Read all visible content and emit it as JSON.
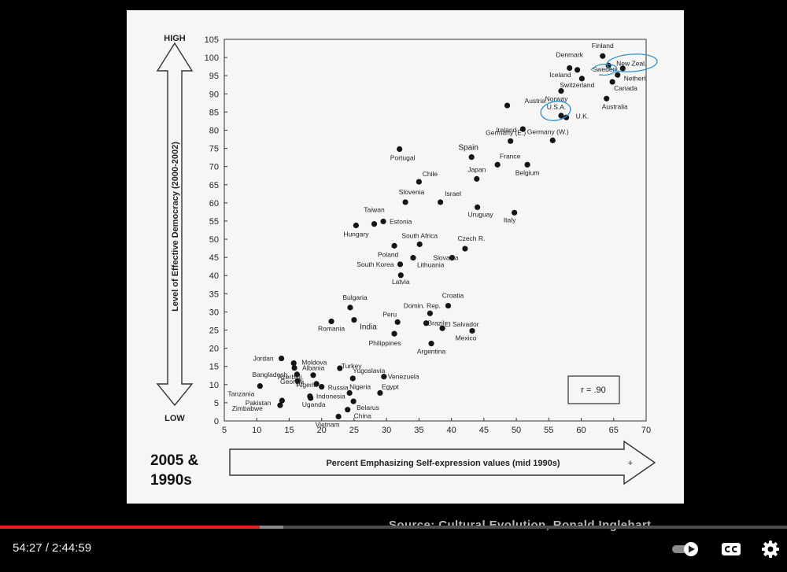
{
  "slide": {
    "high_label": "HIGH",
    "low_label": "LOW",
    "y_title": "Level of Effective Democracy (2000-2002)",
    "x_title": "Percent Emphasizing Self-expression values (mid 1990s)",
    "year_line1": "2005 &",
    "year_line2": "1990s",
    "r_value": "r = .90",
    "plus_mark": "+"
  },
  "chart_data": {
    "type": "scatter",
    "title": "",
    "xlabel": "Percent Emphasizing Self-expression values (mid 1990s)",
    "ylabel": "Level of Effective Democracy (2000-2002)",
    "xlim": [
      5,
      70
    ],
    "ylim": [
      0,
      105
    ],
    "xticks": [
      5,
      10,
      15,
      20,
      25,
      30,
      35,
      40,
      45,
      50,
      55,
      60,
      65,
      70
    ],
    "yticks": [
      0,
      5,
      10,
      15,
      20,
      25,
      30,
      35,
      40,
      45,
      50,
      55,
      60,
      65,
      70,
      75,
      80,
      85,
      90,
      95,
      100,
      105
    ],
    "grid": false,
    "annotation": "r = .90",
    "points": [
      {
        "label": "Finland",
        "x": 63.3,
        "y": 100.4
      },
      {
        "label": "Denmark",
        "x": 58.2,
        "y": 97.1
      },
      {
        "label": "New Zeal.",
        "x": 64.2,
        "y": 97.8
      },
      {
        "label": "Sweden",
        "x": 66.4,
        "y": 97.0
      },
      {
        "label": "Iceland",
        "x": 59.4,
        "y": 96.6
      },
      {
        "label": "Netherl.",
        "x": 65.6,
        "y": 95.2
      },
      {
        "label": "Switzerland",
        "x": 60.1,
        "y": 94.2
      },
      {
        "label": "Canada",
        "x": 64.8,
        "y": 93.3
      },
      {
        "label": "Norway",
        "x": 56.9,
        "y": 90.8
      },
      {
        "label": "Austria",
        "x": 48.6,
        "y": 86.8
      },
      {
        "label": "Australia",
        "x": 63.9,
        "y": 88.7
      },
      {
        "label": "U.S.A.",
        "x": 56.9,
        "y": 84.0
      },
      {
        "label": "U.K.",
        "x": 57.7,
        "y": 83.5
      },
      {
        "label": "Ireland",
        "x": 51.0,
        "y": 80.3
      },
      {
        "label": "Germany (E.)",
        "x": 49.1,
        "y": 77.0
      },
      {
        "label": "Germany (W.)",
        "x": 55.6,
        "y": 77.2
      },
      {
        "label": "Portugal",
        "x": 32.0,
        "y": 74.8
      },
      {
        "label": "Spain",
        "x": 43.1,
        "y": 72.6
      },
      {
        "label": "France",
        "x": 47.1,
        "y": 70.5
      },
      {
        "label": "Belgium",
        "x": 51.7,
        "y": 70.5
      },
      {
        "label": "Japan",
        "x": 43.9,
        "y": 66.6
      },
      {
        "label": "Chile",
        "x": 35.0,
        "y": 65.8
      },
      {
        "label": "Slovenia",
        "x": 32.9,
        "y": 60.2
      },
      {
        "label": "Israel",
        "x": 38.3,
        "y": 60.2
      },
      {
        "label": "Uruguay",
        "x": 44.0,
        "y": 58.8
      },
      {
        "label": "Italy",
        "x": 49.7,
        "y": 57.3
      },
      {
        "label": "Taiwan",
        "x": 28.1,
        "y": 54.2
      },
      {
        "label": "Estonia",
        "x": 29.5,
        "y": 54.9
      },
      {
        "label": "Hungary",
        "x": 25.3,
        "y": 53.8
      },
      {
        "label": "South Africa",
        "x": 35.1,
        "y": 48.6
      },
      {
        "label": "Czech R.",
        "x": 42.1,
        "y": 47.4
      },
      {
        "label": "Poland",
        "x": 31.2,
        "y": 48.2
      },
      {
        "label": "Slovakia",
        "x": 40.1,
        "y": 44.9
      },
      {
        "label": "Lithuania",
        "x": 34.1,
        "y": 44.9
      },
      {
        "label": "South Korea",
        "x": 32.1,
        "y": 43.1
      },
      {
        "label": "Latvia",
        "x": 32.2,
        "y": 40.1
      },
      {
        "label": "Bulgaria",
        "x": 24.4,
        "y": 31.2
      },
      {
        "label": "Croatia",
        "x": 39.5,
        "y": 31.7
      },
      {
        "label": "Domin. Rep.",
        "x": 36.7,
        "y": 29.6
      },
      {
        "label": "Romania",
        "x": 21.5,
        "y": 27.4
      },
      {
        "label": "India",
        "x": 25.0,
        "y": 27.8
      },
      {
        "label": "Peru",
        "x": 31.7,
        "y": 27.2
      },
      {
        "label": "El Salvador",
        "x": 38.6,
        "y": 25.5
      },
      {
        "label": "Brazil",
        "x": 36.1,
        "y": 26.9
      },
      {
        "label": "Philippines",
        "x": 31.2,
        "y": 24.0
      },
      {
        "label": "Mexico",
        "x": 43.2,
        "y": 24.8
      },
      {
        "label": "Argentina",
        "x": 36.9,
        "y": 21.3
      },
      {
        "label": "Jordan",
        "x": 13.8,
        "y": 17.2
      },
      {
        "label": "Moldova",
        "x": 15.7,
        "y": 15.9
      },
      {
        "label": "Albania",
        "x": 15.8,
        "y": 14.6
      },
      {
        "label": "Turkey",
        "x": 22.8,
        "y": 14.5
      },
      {
        "label": "Bangladesh",
        "x": 16.2,
        "y": 12.8
      },
      {
        "label": "Yugoslavia",
        "x": 24.8,
        "y": 11.7
      },
      {
        "label": "Venezuela",
        "x": 29.6,
        "y": 12.2
      },
      {
        "label": "Georgia",
        "x": 16.3,
        "y": 11.0
      },
      {
        "label": "Azerbaij.",
        "x": 18.7,
        "y": 12.6
      },
      {
        "label": "Tanzania",
        "x": 10.5,
        "y": 9.6
      },
      {
        "label": "Algeria",
        "x": 19.2,
        "y": 10.2
      },
      {
        "label": "Russia",
        "x": 20.0,
        "y": 9.4
      },
      {
        "label": "Nigeria",
        "x": 24.3,
        "y": 7.7
      },
      {
        "label": "Egypt",
        "x": 29.0,
        "y": 7.7
      },
      {
        "label": "Indonesia",
        "x": 18.2,
        "y": 6.8
      },
      {
        "label": "Pakistan",
        "x": 13.9,
        "y": 5.6
      },
      {
        "label": "Uganda",
        "x": 18.3,
        "y": 6.3
      },
      {
        "label": "Belarus",
        "x": 24.9,
        "y": 5.4
      },
      {
        "label": "Zimbabwe",
        "x": 13.6,
        "y": 4.3
      },
      {
        "label": "Vietnam",
        "x": 22.6,
        "y": 1.2
      },
      {
        "label": "China",
        "x": 24.0,
        "y": 3.1
      }
    ]
  },
  "source": "Source: Cultural Evolution, Ronald Inglehart",
  "player": {
    "time": "54:27 / 2:44:59",
    "progress": 0.33,
    "buffered": 0.36
  }
}
